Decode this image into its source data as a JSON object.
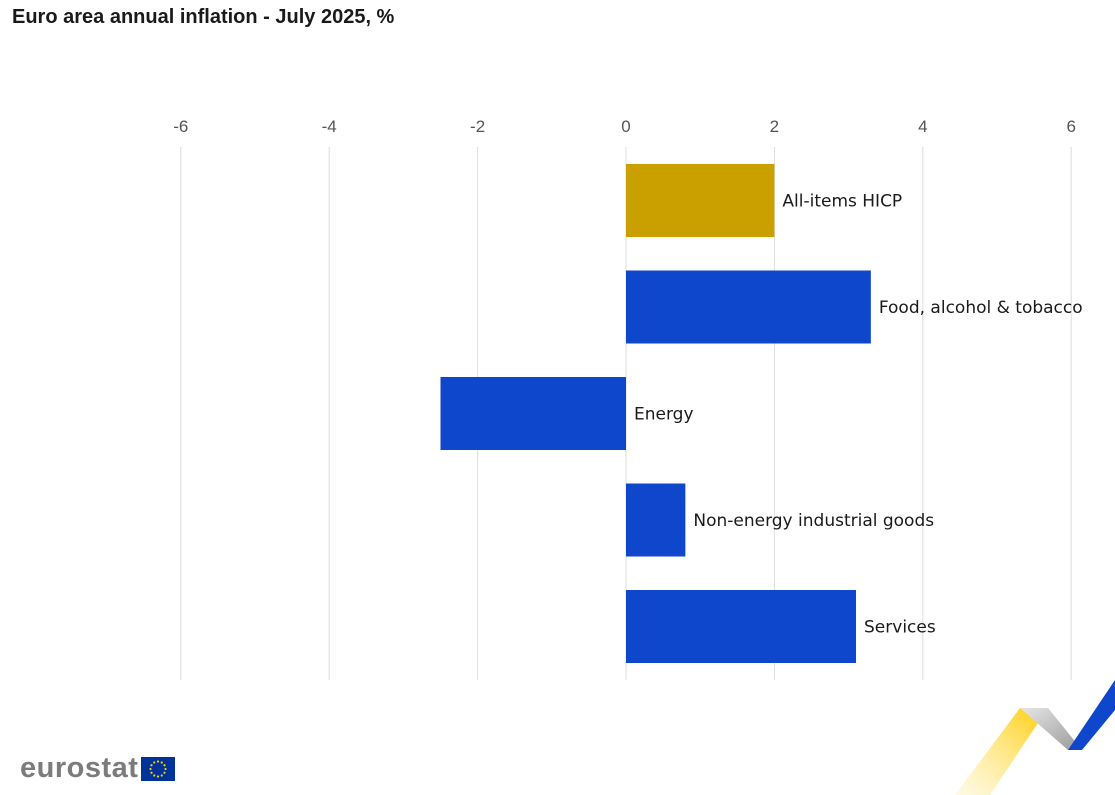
{
  "chart_data": {
    "type": "bar",
    "orientation": "horizontal",
    "title": "Euro area annual inflation - July 2025, %",
    "xlabel": "",
    "ylabel": "",
    "xlim": [
      -6.2,
      6.2
    ],
    "x_ticks": [
      -6,
      -4,
      -2,
      0,
      2,
      4,
      6
    ],
    "grid": true,
    "categories": [
      "All-items HICP",
      "Food, alcohol & tobacco",
      "Energy",
      "Non-energy industrial goods",
      "Services"
    ],
    "values": [
      2.0,
      3.3,
      -2.5,
      0.8,
      3.1
    ],
    "colors": [
      "#c9a000",
      "#0f47cc",
      "#0f47cc",
      "#0f47cc",
      "#0f47cc"
    ]
  },
  "footer": {
    "logo_text": "eurostat",
    "flag_color": "#003399",
    "star_color": "#ffcc00"
  }
}
